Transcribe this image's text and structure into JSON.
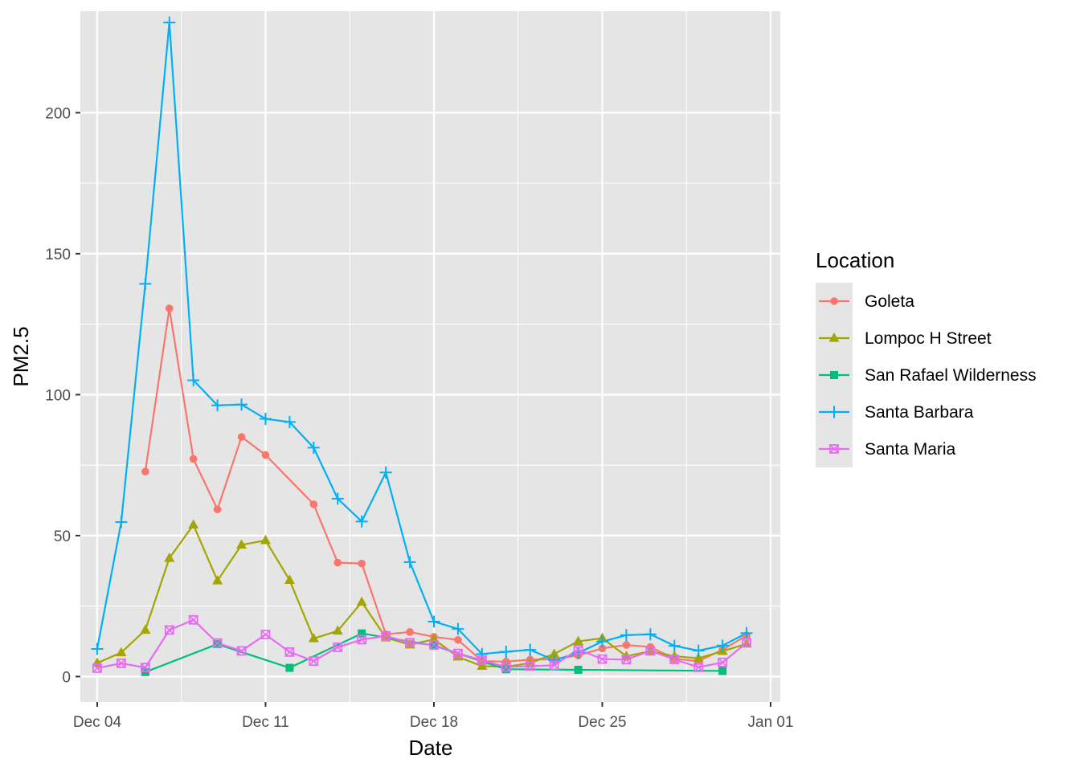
{
  "chart_data": {
    "type": "line",
    "xlabel": "Date",
    "ylabel": "PM2.5",
    "x_ticks": [
      "Dec 04",
      "Dec 11",
      "Dec 18",
      "Dec 25",
      "Jan 01"
    ],
    "y_ticks": [
      "0",
      "50",
      "100",
      "150",
      "200"
    ],
    "xlim": [
      "2017-12-03.3",
      "2018-01-01.4"
    ],
    "ylim": [
      -9,
      236
    ],
    "grid": true,
    "legend": {
      "title": "Location",
      "position": "right"
    },
    "series": [
      {
        "name": "Goleta",
        "color": "#F8766D",
        "marker": "circle",
        "points": [
          [
            "2017-12-06",
            72.7
          ],
          [
            "2017-12-07",
            130.6
          ],
          [
            "2017-12-08",
            77.2
          ],
          [
            "2017-12-09",
            59.3
          ],
          [
            "2017-12-10",
            85.0
          ],
          [
            "2017-12-11",
            78.6
          ],
          [
            "2017-12-13",
            61.1
          ],
          [
            "2017-12-14",
            40.4
          ],
          [
            "2017-12-15",
            40.1
          ],
          [
            "2017-12-16",
            15.0
          ],
          [
            "2017-12-17",
            15.8
          ],
          [
            "2017-12-18",
            14.1
          ],
          [
            "2017-12-19",
            13.0
          ],
          [
            "2017-12-20",
            5.5
          ],
          [
            "2017-12-21",
            5.3
          ],
          [
            "2017-12-22",
            6.0
          ],
          [
            "2017-12-23",
            6.2
          ],
          [
            "2017-12-24",
            7.5
          ],
          [
            "2017-12-25",
            10.0
          ],
          [
            "2017-12-26",
            11.2
          ],
          [
            "2017-12-27",
            10.5
          ],
          [
            "2017-12-28",
            6.3
          ],
          [
            "2017-12-29",
            5.5
          ],
          [
            "2017-12-30",
            9.5
          ],
          [
            "2017-12-31",
            14.6
          ]
        ]
      },
      {
        "name": "Lompoc H Street",
        "color": "#A3A500",
        "marker": "triangle",
        "points": [
          [
            "2017-12-04",
            4.8
          ],
          [
            "2017-12-05",
            8.5
          ],
          [
            "2017-12-06",
            16.5
          ],
          [
            "2017-12-07",
            42.0
          ],
          [
            "2017-12-08",
            53.8
          ],
          [
            "2017-12-09",
            34.0
          ],
          [
            "2017-12-10",
            46.7
          ],
          [
            "2017-12-11",
            48.3
          ],
          [
            "2017-12-12",
            34.2
          ],
          [
            "2017-12-13",
            13.5
          ],
          [
            "2017-12-14",
            16.2
          ],
          [
            "2017-12-15",
            26.4
          ],
          [
            "2017-12-16",
            13.8
          ],
          [
            "2017-12-17",
            11.3
          ],
          [
            "2017-12-18",
            13.2
          ],
          [
            "2017-12-19",
            7.0
          ],
          [
            "2017-12-20",
            3.7
          ],
          [
            "2017-12-21",
            3.5
          ],
          [
            "2017-12-22",
            4.8
          ],
          [
            "2017-12-23",
            8.0
          ],
          [
            "2017-12-24",
            12.5
          ],
          [
            "2017-12-25",
            13.6
          ],
          [
            "2017-12-26",
            7.2
          ],
          [
            "2017-12-27",
            9.0
          ],
          [
            "2017-12-28",
            7.2
          ],
          [
            "2017-12-29",
            6.5
          ],
          [
            "2017-12-30",
            9.0
          ],
          [
            "2017-12-31",
            11.6
          ]
        ]
      },
      {
        "name": "San Rafael Wilderness",
        "color": "#00BF7D",
        "marker": "square",
        "points": [
          [
            "2017-12-06",
            1.6
          ],
          [
            "2017-12-09",
            11.5
          ],
          [
            "2017-12-12",
            3.1
          ],
          [
            "2017-12-15",
            15.3
          ],
          [
            "2017-12-18",
            11.0
          ],
          [
            "2017-12-21",
            2.6
          ],
          [
            "2017-12-24",
            2.4
          ],
          [
            "2017-12-30",
            2.0
          ]
        ]
      },
      {
        "name": "Santa Barbara",
        "color": "#00B0F6",
        "marker": "plus",
        "points": [
          [
            "2017-12-04",
            9.8
          ],
          [
            "2017-12-05",
            54.8
          ],
          [
            "2017-12-06",
            139.3
          ],
          [
            "2017-12-07",
            232.0
          ],
          [
            "2017-12-08",
            105.1
          ],
          [
            "2017-12-09",
            96.2
          ],
          [
            "2017-12-10",
            96.5
          ],
          [
            "2017-12-11",
            91.4
          ],
          [
            "2017-12-12",
            90.3
          ],
          [
            "2017-12-13",
            81.2
          ],
          [
            "2017-12-14",
            63.1
          ],
          [
            "2017-12-15",
            55.0
          ],
          [
            "2017-12-16",
            72.4
          ],
          [
            "2017-12-17",
            40.6
          ],
          [
            "2017-12-18",
            19.5
          ],
          [
            "2017-12-19",
            16.9
          ],
          [
            "2017-12-20",
            8.0
          ],
          [
            "2017-12-21",
            8.8
          ],
          [
            "2017-12-22",
            9.5
          ],
          [
            "2017-12-23",
            5.8
          ],
          [
            "2017-12-24",
            8.4
          ],
          [
            "2017-12-25",
            12.4
          ],
          [
            "2017-12-26",
            14.7
          ],
          [
            "2017-12-27",
            15.0
          ],
          [
            "2017-12-28",
            10.9
          ],
          [
            "2017-12-29",
            9.2
          ],
          [
            "2017-12-30",
            11.0
          ],
          [
            "2017-12-31",
            15.4
          ]
        ]
      },
      {
        "name": "Santa Maria",
        "color": "#E76BF3",
        "marker": "square-x",
        "points": [
          [
            "2017-12-04",
            3.0
          ],
          [
            "2017-12-05",
            4.7
          ],
          [
            "2017-12-06",
            3.2
          ],
          [
            "2017-12-07",
            16.5
          ],
          [
            "2017-12-08",
            20.1
          ],
          [
            "2017-12-09",
            11.9
          ],
          [
            "2017-12-10",
            9.1
          ],
          [
            "2017-12-11",
            14.9
          ],
          [
            "2017-12-12",
            8.7
          ],
          [
            "2017-12-13",
            5.5
          ],
          [
            "2017-12-14",
            10.4
          ],
          [
            "2017-12-15",
            13.1
          ],
          [
            "2017-12-16",
            14.4
          ],
          [
            "2017-12-17",
            12.0
          ],
          [
            "2017-12-18",
            11.2
          ],
          [
            "2017-12-19",
            8.2
          ],
          [
            "2017-12-20",
            5.8
          ],
          [
            "2017-12-21",
            3.4
          ],
          [
            "2017-12-22",
            3.7
          ],
          [
            "2017-12-23",
            4.0
          ],
          [
            "2017-12-24",
            9.6
          ],
          [
            "2017-12-25",
            6.2
          ],
          [
            "2017-12-26",
            6.0
          ],
          [
            "2017-12-27",
            9.1
          ],
          [
            "2017-12-28",
            6.1
          ],
          [
            "2017-12-29",
            3.3
          ],
          [
            "2017-12-30",
            5.0
          ],
          [
            "2017-12-31",
            12.0
          ]
        ]
      }
    ]
  },
  "style": {
    "panel_background": "#E5E5E5",
    "grid_major": "#FFFFFF",
    "tick_color": "#333333"
  }
}
